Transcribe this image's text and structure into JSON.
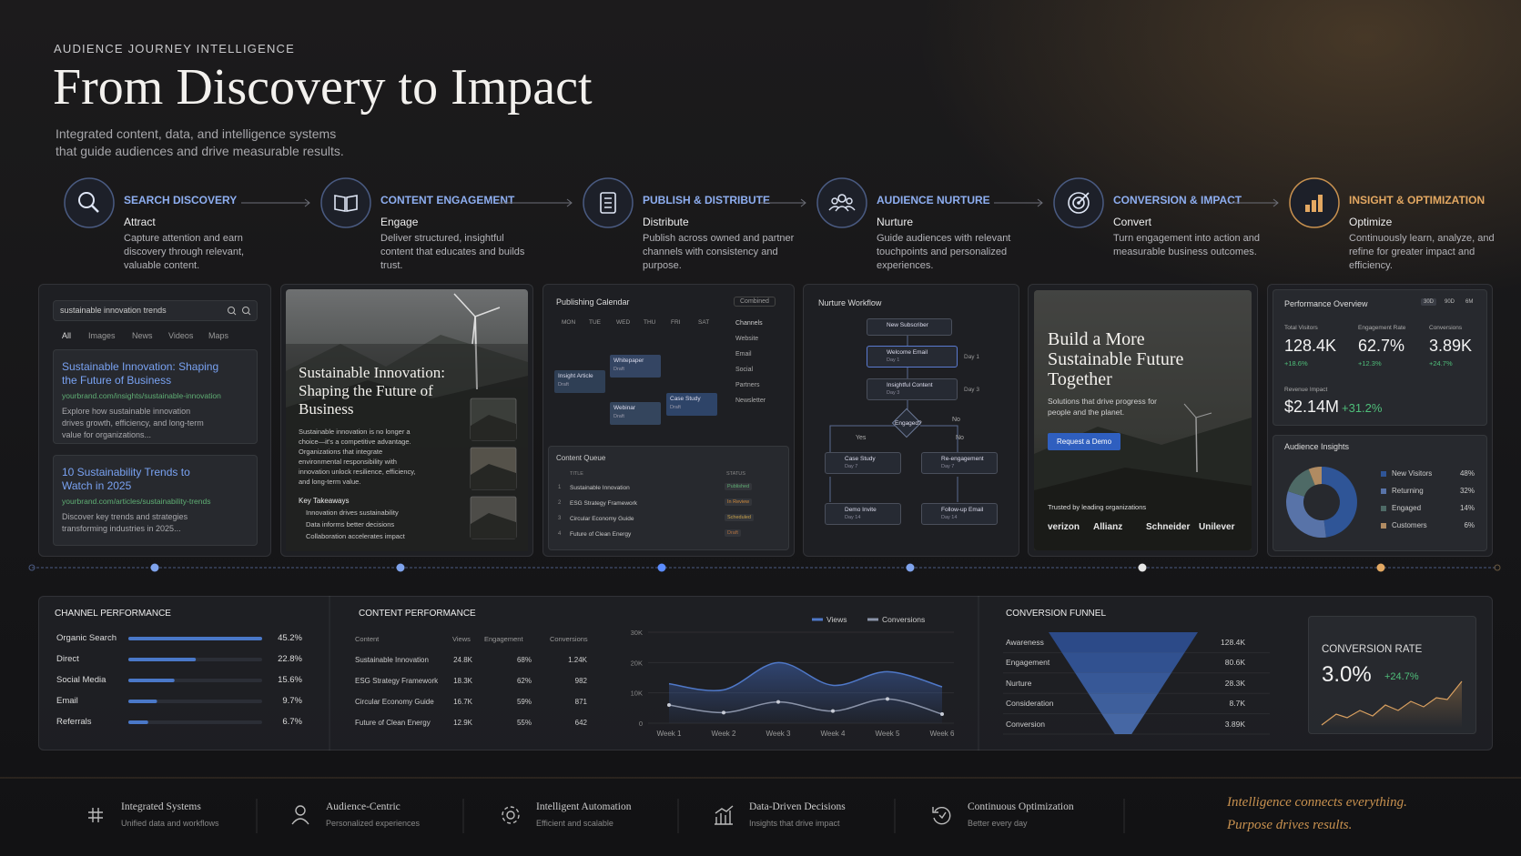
{
  "header": {
    "eyebrow": "AUDIENCE JOURNEY INTELLIGENCE",
    "title": "From Discovery to Impact",
    "subtitle": [
      "Integrated content, data, and intelligence systems",
      "that guide audiences and drive measurable results."
    ]
  },
  "stages": [
    {
      "title": "SEARCH DISCOVERY",
      "verb": "Attract",
      "description": "Capture attention and earn discovery through relevant, valuable content."
    },
    {
      "title": "CONTENT ENGAGEMENT",
      "verb": "Engage",
      "description": "Deliver structured, insightful content that educates and builds trust."
    },
    {
      "title": "PUBLISH & DISTRIBUTE",
      "verb": "Distribute",
      "description": "Publish across owned and partner channels with consistency and purpose."
    },
    {
      "title": "AUDIENCE NURTURE",
      "verb": "Nurture",
      "description": "Guide audiences with relevant touchpoints and personalized experiences."
    },
    {
      "title": "CONVERSION & IMPACT",
      "verb": "Convert",
      "description": "Turn engagement into action and measurable business outcomes."
    },
    {
      "title": "INSIGHT & OPTIMIZATION",
      "verb": "Optimize",
      "description": "Continuously learn, analyze, and refine for greater impact and efficiency."
    }
  ],
  "search_panel": {
    "query": "sustainable innovation trends",
    "tabs": [
      "All",
      "Images",
      "News",
      "Videos",
      "Maps"
    ],
    "results": [
      {
        "title": "Sustainable Innovation: Shaping the Future of Business",
        "url": "yourbrand.com/insights/sustainable-innovation",
        "snippet": "Explore how sustainable innovation drives growth, efficiency, and long-term value for organizations..."
      },
      {
        "title": "10 Sustainability Trends to Watch in 2025",
        "url": "yourbrand.com/articles/sustainability-trends",
        "snippet": "Discover key trends and strategies transforming industries in 2025..."
      }
    ]
  },
  "article_panel": {
    "title": "Sustainable Innovation: Shaping the Future of Business",
    "body": "Sustainable innovation is no longer a choice—it's a competitive advantage. Organizations that integrate environmental responsibility with innovation unlock resilience, efficiency, and long-term value.",
    "takeaways_heading": "Key Takeaways",
    "takeaways": [
      "Innovation drives sustainability",
      "Data informs better decisions",
      "Collaboration accelerates impact"
    ]
  },
  "calendar_panel": {
    "title": "Publishing Calendar",
    "filter": "Combined",
    "days": [
      "MON",
      "TUE",
      "WED",
      "THU",
      "FRI",
      "SAT"
    ],
    "events": [
      {
        "label": "Whitepaper",
        "status": "Draft"
      },
      {
        "label": "Insight Article",
        "status": "Draft"
      },
      {
        "label": "Webinar",
        "status": "Draft"
      },
      {
        "label": "Case Study",
        "status": "Draft"
      }
    ],
    "channels_heading": "Channels",
    "channels": [
      "Website",
      "Email",
      "Social",
      "Partners",
      "Newsletter"
    ],
    "queue_title": "Content Queue",
    "queue_headers": [
      "TITLE",
      "STATUS"
    ],
    "queue": [
      {
        "num": "1",
        "title": "Sustainable Innovation",
        "status": "Published"
      },
      {
        "num": "2",
        "title": "ESG Strategy Framework",
        "status": "In Review"
      },
      {
        "num": "3",
        "title": "Circular Economy Guide",
        "status": "Scheduled"
      },
      {
        "num": "4",
        "title": "Future of Clean Energy",
        "status": "Draft"
      }
    ]
  },
  "workflow_panel": {
    "title": "Nurture Workflow",
    "start": "New Subscriber",
    "steps": [
      {
        "label": "Welcome Email",
        "sub": "Day 1"
      },
      {
        "label": "Insightful Content",
        "sub": "Day 3"
      }
    ],
    "decision": "Engaged?",
    "yes": "Yes",
    "no": "No",
    "branches": [
      {
        "label": "Case Study",
        "sub": "Day 7"
      },
      {
        "label": "Re-engagement",
        "sub": "Day 7"
      },
      {
        "label": "Demo Invite",
        "sub": "Day 14"
      },
      {
        "label": "Follow-up Email",
        "sub": "Day 14"
      }
    ]
  },
  "cta_panel": {
    "title": "Build a More Sustainable Future Together",
    "body": "Solutions that drive progress for people and the planet.",
    "button": "Request a Demo",
    "trusted": "Trusted by leading organizations",
    "logos": [
      "verizon",
      "Allianz",
      "Schneider",
      "Unilever"
    ]
  },
  "performance_panel": {
    "title": "Performance Overview",
    "ranges": [
      "30D",
      "90D",
      "6M"
    ],
    "kpis": [
      {
        "label": "Total Visitors",
        "value": "128.4K",
        "change": "+18.6%"
      },
      {
        "label": "Engagement Rate",
        "value": "62.7%",
        "change": "+12.3%"
      },
      {
        "label": "Conversions",
        "value": "3.89K",
        "change": "+24.7%"
      }
    ],
    "revenue": {
      "label": "Revenue Impact",
      "value": "$2.14M",
      "change": "+31.2%"
    },
    "insights_title": "Audience Insights",
    "segments": [
      {
        "name": "New Visitors",
        "value": 48,
        "label": "48%",
        "color": "#2f5597"
      },
      {
        "name": "Returning",
        "value": 32,
        "label": "32%",
        "color": "#5873a8"
      },
      {
        "name": "Engaged",
        "value": 14,
        "label": "14%",
        "color": "#4e6a66"
      },
      {
        "name": "Customers",
        "value": 6,
        "label": "6%",
        "color": "#b08b62"
      }
    ]
  },
  "channel_performance": {
    "title": "CHANNEL PERFORMANCE",
    "xlim": [
      0,
      45.2
    ],
    "rows": [
      {
        "name": "Organic Search",
        "value": 45.2,
        "label": "45.2%"
      },
      {
        "name": "Direct",
        "value": 22.8,
        "label": "22.8%"
      },
      {
        "name": "Social Media",
        "value": 15.6,
        "label": "15.6%"
      },
      {
        "name": "Email",
        "value": 9.7,
        "label": "9.7%"
      },
      {
        "name": "Referrals",
        "value": 6.7,
        "label": "6.7%"
      }
    ]
  },
  "content_performance": {
    "title": "CONTENT PERFORMANCE",
    "headers": [
      "Content",
      "Views",
      "Engagement",
      "Conversions"
    ],
    "rows": [
      [
        "Sustainable Innovation",
        "24.8K",
        "68%",
        "1.24K"
      ],
      [
        "ESG Strategy Framework",
        "18.3K",
        "62%",
        "982"
      ],
      [
        "Circular Economy Guide",
        "16.7K",
        "59%",
        "871"
      ],
      [
        "Future of Clean Energy",
        "12.9K",
        "55%",
        "642"
      ]
    ],
    "chart": {
      "type": "line",
      "x": [
        "Week 1",
        "Week 2",
        "Week 3",
        "Week 4",
        "Week 5",
        "Week 6"
      ],
      "ylim": [
        0,
        30000
      ],
      "yticks": [
        0,
        {
          "value": 10000,
          "label": "10K"
        },
        {
          "value": 20000,
          "label": "20K"
        },
        {
          "value": 30000,
          "label": "30K"
        }
      ],
      "series": [
        {
          "name": "Views",
          "color": "#4f78c8",
          "values": [
            13000,
            11000,
            20000,
            12500,
            17000,
            12000
          ]
        },
        {
          "name": "Conversions",
          "color": "#8a93a8",
          "values": [
            6000,
            3500,
            7000,
            4000,
            8000,
            3000
          ]
        }
      ]
    }
  },
  "conversion_funnel": {
    "title": "CONVERSION FUNNEL",
    "stages": [
      {
        "name": "Awareness",
        "value": "128.4K"
      },
      {
        "name": "Engagement",
        "value": "80.6K"
      },
      {
        "name": "Nurture",
        "value": "28.3K"
      },
      {
        "name": "Consideration",
        "value": "8.7K"
      },
      {
        "name": "Conversion",
        "value": "3.89K"
      }
    ],
    "rate": {
      "label": "CONVERSION RATE",
      "value": "3.0%",
      "change": "+24.7%"
    }
  },
  "footer": {
    "items": [
      {
        "title": "Integrated Systems",
        "subtitle": "Unified data and workflows"
      },
      {
        "title": "Audience-Centric",
        "subtitle": "Personalized experiences"
      },
      {
        "title": "Intelligent Automation",
        "subtitle": "Efficient and scalable"
      },
      {
        "title": "Data-Driven Decisions",
        "subtitle": "Insights that drive impact"
      },
      {
        "title": "Continuous Optimization",
        "subtitle": "Better every day"
      }
    ],
    "tagline": [
      "Intelligence connects everything.",
      "Purpose drives results."
    ]
  }
}
